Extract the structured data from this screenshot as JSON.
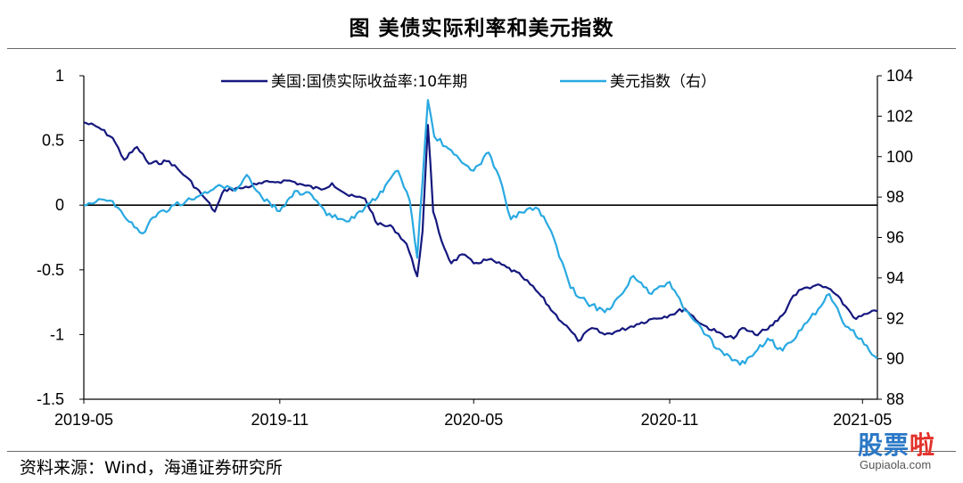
{
  "title": "图  美债实际利率和美元指数",
  "source": "资料来源：Wind，海通证券研究所",
  "watermark": {
    "main": "股票",
    "red": "啦",
    "sub": "Gupiaola.com"
  },
  "chart_data": {
    "type": "line",
    "x_ticks": [
      "2019-05",
      "2019-11",
      "2020-05",
      "2020-11",
      "2021-05"
    ],
    "x_range": [
      "2019-05-01",
      "2021-05-15"
    ],
    "left_axis": {
      "ticks": [
        "1",
        "0.5",
        "0",
        "-0.5",
        "-1",
        "-1.5"
      ],
      "range": [
        -1.5,
        1
      ]
    },
    "right_axis": {
      "ticks": [
        "104",
        "102",
        "100",
        "98",
        "96",
        "94",
        "92",
        "90",
        "88"
      ],
      "range": [
        88,
        104
      ]
    },
    "legend_placement": "top-center",
    "series": [
      {
        "name": "美国:国债实际收益率:10年期",
        "axis": "left",
        "color": "#15187e",
        "points": [
          [
            "2019-05-01",
            0.64
          ],
          [
            "2019-05-15",
            0.6
          ],
          [
            "2019-05-28",
            0.52
          ],
          [
            "2019-06-08",
            0.35
          ],
          [
            "2019-06-20",
            0.45
          ],
          [
            "2019-07-01",
            0.32
          ],
          [
            "2019-07-20",
            0.34
          ],
          [
            "2019-08-05",
            0.22
          ],
          [
            "2019-08-22",
            0.06
          ],
          [
            "2019-09-01",
            -0.05
          ],
          [
            "2019-09-10",
            0.12
          ],
          [
            "2019-09-25",
            0.13
          ],
          [
            "2019-10-10",
            0.16
          ],
          [
            "2019-10-25",
            0.18
          ],
          [
            "2019-11-10",
            0.19
          ],
          [
            "2019-11-25",
            0.15
          ],
          [
            "2019-12-10",
            0.12
          ],
          [
            "2019-12-20",
            0.17
          ],
          [
            "2020-01-05",
            0.07
          ],
          [
            "2020-01-20",
            0.05
          ],
          [
            "2020-02-01",
            -0.15
          ],
          [
            "2020-02-15",
            -0.17
          ],
          [
            "2020-02-28",
            -0.3
          ],
          [
            "2020-03-09",
            -0.55
          ],
          [
            "2020-03-14",
            -0.2
          ],
          [
            "2020-03-19",
            0.62
          ],
          [
            "2020-03-24",
            -0.05
          ],
          [
            "2020-04-01",
            -0.28
          ],
          [
            "2020-04-10",
            -0.45
          ],
          [
            "2020-04-20",
            -0.38
          ],
          [
            "2020-05-01",
            -0.45
          ],
          [
            "2020-05-15",
            -0.42
          ],
          [
            "2020-06-01",
            -0.48
          ],
          [
            "2020-06-15",
            -0.55
          ],
          [
            "2020-07-01",
            -0.68
          ],
          [
            "2020-07-15",
            -0.83
          ],
          [
            "2020-08-01",
            -0.98
          ],
          [
            "2020-08-07",
            -1.05
          ],
          [
            "2020-08-20",
            -0.95
          ],
          [
            "2020-09-01",
            -1.0
          ],
          [
            "2020-09-15",
            -0.97
          ],
          [
            "2020-10-01",
            -0.92
          ],
          [
            "2020-10-15",
            -0.88
          ],
          [
            "2020-11-01",
            -0.85
          ],
          [
            "2020-11-15",
            -0.8
          ],
          [
            "2020-12-01",
            -0.92
          ],
          [
            "2020-12-15",
            -0.98
          ],
          [
            "2020-12-31",
            -1.03
          ],
          [
            "2021-01-08",
            -0.95
          ],
          [
            "2021-01-20",
            -1.0
          ],
          [
            "2021-02-01",
            -0.96
          ],
          [
            "2021-02-15",
            -0.85
          ],
          [
            "2021-02-25",
            -0.7
          ],
          [
            "2021-03-05",
            -0.65
          ],
          [
            "2021-03-18",
            -0.62
          ],
          [
            "2021-04-01",
            -0.65
          ],
          [
            "2021-04-15",
            -0.78
          ],
          [
            "2021-04-25",
            -0.88
          ],
          [
            "2021-05-05",
            -0.84
          ],
          [
            "2021-05-15",
            -0.82
          ]
        ]
      },
      {
        "name": "美元指数（右）",
        "axis": "right",
        "color": "#29a9e1",
        "points": [
          [
            "2019-05-01",
            97.6
          ],
          [
            "2019-05-15",
            97.9
          ],
          [
            "2019-05-28",
            97.8
          ],
          [
            "2019-06-10",
            96.9
          ],
          [
            "2019-06-25",
            96.2
          ],
          [
            "2019-07-05",
            97.0
          ],
          [
            "2019-07-25",
            97.6
          ],
          [
            "2019-08-05",
            97.8
          ],
          [
            "2019-08-15",
            98.0
          ],
          [
            "2019-08-25",
            98.2
          ],
          [
            "2019-09-05",
            98.6
          ],
          [
            "2019-09-20",
            98.3
          ],
          [
            "2019-10-01",
            99.1
          ],
          [
            "2019-10-15",
            98.0
          ],
          [
            "2019-11-01",
            97.3
          ],
          [
            "2019-11-15",
            98.3
          ],
          [
            "2019-12-01",
            98.1
          ],
          [
            "2019-12-15",
            97.1
          ],
          [
            "2020-01-05",
            96.8
          ],
          [
            "2020-01-15",
            97.3
          ],
          [
            "2020-02-01",
            98.0
          ],
          [
            "2020-02-20",
            99.3
          ],
          [
            "2020-03-02",
            97.8
          ],
          [
            "2020-03-09",
            95.0
          ],
          [
            "2020-03-19",
            102.8
          ],
          [
            "2020-03-25",
            101.0
          ],
          [
            "2020-04-05",
            100.5
          ],
          [
            "2020-04-20",
            99.7
          ],
          [
            "2020-05-01",
            99.3
          ],
          [
            "2020-05-15",
            100.2
          ],
          [
            "2020-05-25",
            99.0
          ],
          [
            "2020-06-05",
            96.9
          ],
          [
            "2020-06-20",
            97.4
          ],
          [
            "2020-07-01",
            97.4
          ],
          [
            "2020-07-15",
            96.0
          ],
          [
            "2020-07-31",
            93.5
          ],
          [
            "2020-08-15",
            92.8
          ],
          [
            "2020-09-01",
            92.3
          ],
          [
            "2020-09-15",
            93.1
          ],
          [
            "2020-09-28",
            94.1
          ],
          [
            "2020-10-15",
            93.2
          ],
          [
            "2020-11-01",
            93.8
          ],
          [
            "2020-11-15",
            92.4
          ],
          [
            "2020-12-01",
            91.5
          ],
          [
            "2020-12-15",
            90.5
          ],
          [
            "2021-01-06",
            89.7
          ],
          [
            "2021-01-20",
            90.3
          ],
          [
            "2021-02-01",
            91.0
          ],
          [
            "2021-02-15",
            90.4
          ],
          [
            "2021-02-25",
            90.9
          ],
          [
            "2021-03-10",
            91.8
          ],
          [
            "2021-03-31",
            93.2
          ],
          [
            "2021-04-15",
            91.6
          ],
          [
            "2021-04-30",
            91.0
          ],
          [
            "2021-05-10",
            90.2
          ],
          [
            "2021-05-15",
            90.0
          ]
        ]
      }
    ]
  }
}
